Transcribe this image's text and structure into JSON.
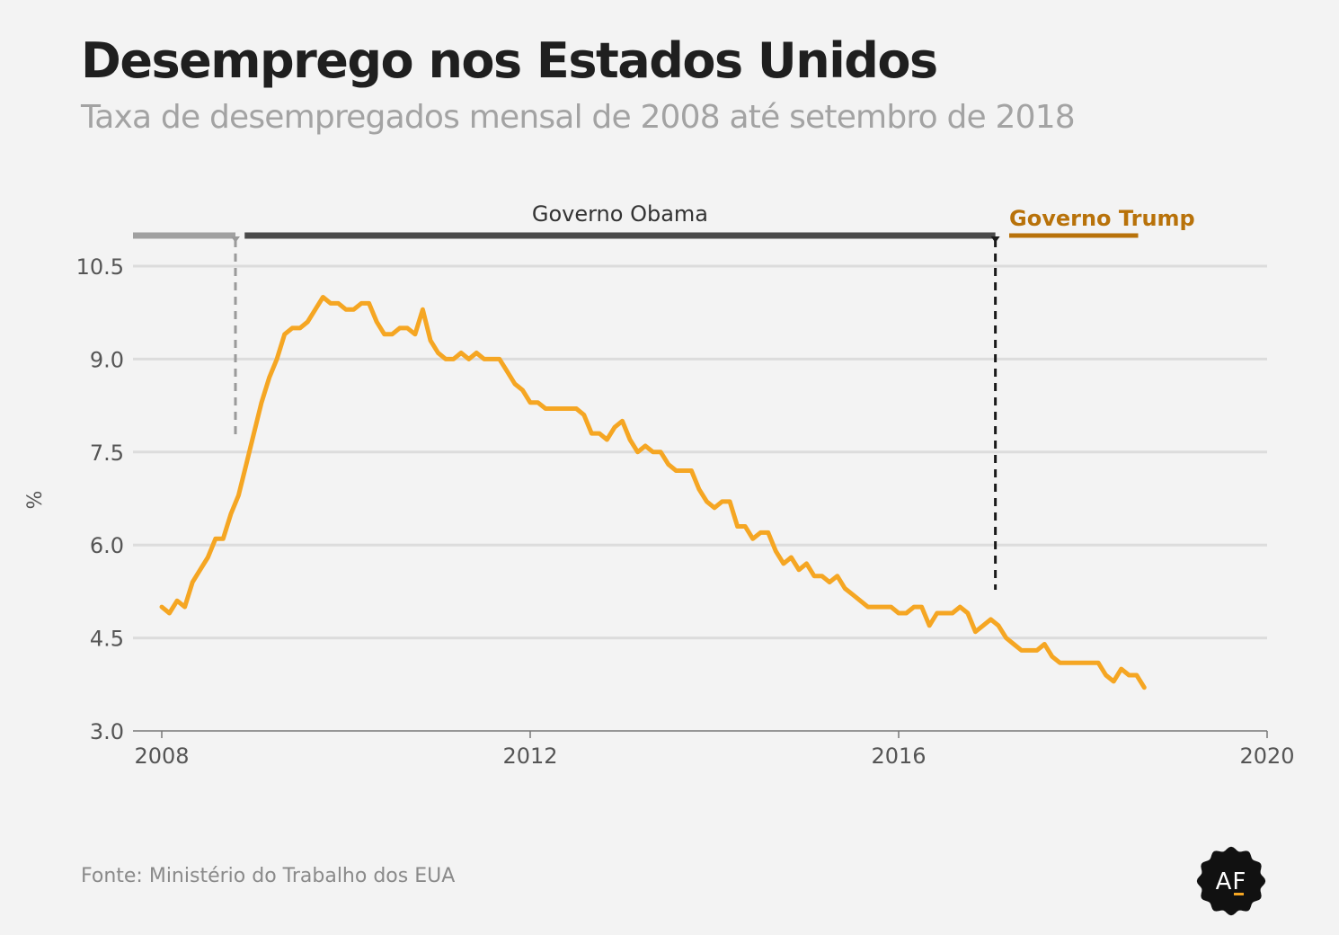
{
  "title": "Desemprego nos Estados Unidos",
  "subtitle": "Taxa de desempregados mensal de 2008 até setembro de 2018",
  "source": "Fonte: Ministério do Trabalho dos EUA",
  "logo_text": "AF",
  "colors": {
    "line": "#f5a623",
    "obama_bar": "#4a4a4a",
    "pre_bar": "#a0a0a0",
    "trump": "#b8720a",
    "grid": "#dcdcdc",
    "axis_text": "#555555"
  },
  "chart_data": {
    "type": "line",
    "title": "Desemprego nos Estados Unidos",
    "subtitle": "Taxa de desempregados mensal de 2008 até setembro de 2018",
    "xlabel": "",
    "ylabel": "%",
    "xlim": [
      2008,
      2020
    ],
    "ylim": [
      3.0,
      10.5
    ],
    "x_ticks": [
      2008,
      2012,
      2016,
      2020
    ],
    "x_tick_labels": [
      "2008",
      "2012",
      "2016",
      "2020"
    ],
    "y_ticks": [
      3.0,
      4.5,
      6.0,
      7.5,
      9.0,
      10.5
    ],
    "y_tick_labels": [
      "3.0",
      "4.5",
      "6.0",
      "7.5",
      "9.0",
      "10.5"
    ],
    "grid": true,
    "series": [
      {
        "x_start": "2008-01",
        "frequency": "monthly",
        "values": [
          5.0,
          4.9,
          5.1,
          5.0,
          5.4,
          5.6,
          5.8,
          6.1,
          6.1,
          6.5,
          6.8,
          7.3,
          7.8,
          8.3,
          8.7,
          9.0,
          9.4,
          9.5,
          9.5,
          9.6,
          9.8,
          10.0,
          9.9,
          9.9,
          9.8,
          9.8,
          9.9,
          9.9,
          9.6,
          9.4,
          9.4,
          9.5,
          9.5,
          9.4,
          9.8,
          9.3,
          9.1,
          9.0,
          9.0,
          9.1,
          9.0,
          9.1,
          9.0,
          9.0,
          9.0,
          8.8,
          8.6,
          8.5,
          8.3,
          8.3,
          8.2,
          8.2,
          8.2,
          8.2,
          8.2,
          8.1,
          7.8,
          7.8,
          7.7,
          7.9,
          8.0,
          7.7,
          7.5,
          7.6,
          7.5,
          7.5,
          7.3,
          7.2,
          7.2,
          7.2,
          6.9,
          6.7,
          6.6,
          6.7,
          6.7,
          6.3,
          6.3,
          6.1,
          6.2,
          6.2,
          5.9,
          5.7,
          5.8,
          5.6,
          5.7,
          5.5,
          5.5,
          5.4,
          5.5,
          5.3,
          5.2,
          5.1,
          5.0,
          5.0,
          5.0,
          5.0,
          4.9,
          4.9,
          5.0,
          5.0,
          4.7,
          4.9,
          4.9,
          4.9,
          5.0,
          4.9,
          4.6,
          4.7,
          4.8,
          4.7,
          4.5,
          4.4,
          4.3,
          4.3,
          4.3,
          4.4,
          4.2,
          4.1,
          4.1,
          4.1,
          4.1,
          4.1,
          4.1,
          3.9,
          3.8,
          4.0,
          3.9,
          3.9,
          3.7
        ]
      }
    ],
    "annotations": [
      {
        "label": "",
        "from": 2008.0,
        "to": 2008.8
      },
      {
        "label": "Governo Obama",
        "from": 2008.9,
        "to": 2017.05
      },
      {
        "label": "Governo Trump",
        "from": 2017.2,
        "to": 2018.6
      }
    ],
    "event_lines": [
      {
        "x": 2008.8,
        "style": "dashed-gray"
      },
      {
        "x": 2017.05,
        "style": "dashed-black"
      }
    ]
  }
}
